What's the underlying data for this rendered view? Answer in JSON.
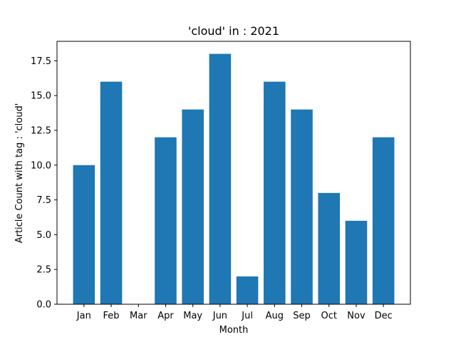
{
  "chart_data": {
    "type": "bar",
    "title": "'cloud' in : 2021",
    "xlabel": "Month",
    "ylabel": "Article Count with tag : 'cloud'",
    "categories": [
      "Jan",
      "Feb",
      "Mar",
      "Apr",
      "May",
      "Jun",
      "Jul",
      "Aug",
      "Sep",
      "Oct",
      "Nov",
      "Dec"
    ],
    "values": [
      10,
      16,
      0,
      12,
      14,
      18,
      2,
      16,
      14,
      8,
      6,
      12
    ],
    "ylim": [
      0,
      18.9
    ],
    "yticks": [
      "0.0",
      "2.5",
      "5.0",
      "7.5",
      "10.0",
      "12.5",
      "15.0",
      "17.5"
    ],
    "bar_color": "#1f77b4",
    "grid": false,
    "legend": "none"
  }
}
